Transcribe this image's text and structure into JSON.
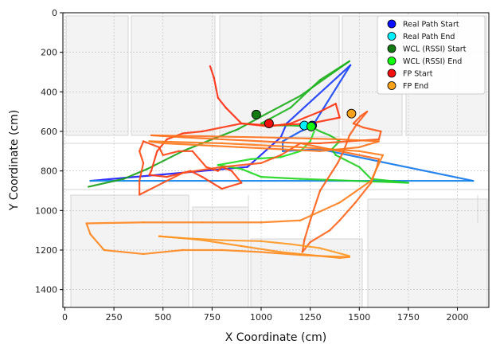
{
  "chart_data": {
    "type": "line",
    "xlabel": "X Coordinate (cm)",
    "ylabel": "Y Coordinate (cm)",
    "xlim": [
      -10,
      2160
    ],
    "ylim": [
      1490,
      0
    ],
    "y_inverted": true,
    "xticks": [
      0,
      250,
      500,
      750,
      1000,
      1250,
      1500,
      1750,
      2000
    ],
    "yticks": [
      0,
      200,
      400,
      600,
      800,
      1000,
      1200,
      1400
    ],
    "grid": true,
    "background": "floor plan",
    "legend_position": "top-right",
    "series": [
      {
        "name": "Real Path",
        "kind": "line",
        "colors": [
          "#1a1aff",
          "#0f8ce6"
        ],
        "points": [
          [
            130,
            850
          ],
          [
            930,
            780
          ],
          [
            1100,
            630
          ],
          [
            1130,
            560
          ],
          [
            1455,
            265
          ],
          [
            1260,
            575
          ],
          [
            1200,
            600
          ],
          [
            1110,
            650
          ],
          [
            1110,
            700
          ],
          [
            1300,
            690
          ],
          [
            2080,
            850
          ],
          [
            300,
            850
          ],
          [
            130,
            850
          ]
        ]
      },
      {
        "name": "WCL (RSSI)",
        "kind": "line",
        "colors": [
          "#1a9e1a",
          "#22e622"
        ],
        "points": [
          [
            120,
            880
          ],
          [
            300,
            840
          ],
          [
            420,
            790
          ],
          [
            600,
            700
          ],
          [
            750,
            640
          ],
          [
            880,
            590
          ],
          [
            1000,
            525
          ],
          [
            1200,
            420
          ],
          [
            1450,
            245
          ],
          [
            1300,
            340
          ],
          [
            1150,
            480
          ],
          [
            1000,
            560
          ],
          [
            1050,
            570
          ],
          [
            1150,
            570
          ],
          [
            1250,
            575
          ],
          [
            1300,
            600
          ],
          [
            1350,
            620
          ],
          [
            1400,
            650
          ],
          [
            1360,
            690
          ],
          [
            1380,
            720
          ],
          [
            1500,
            780
          ],
          [
            1560,
            840
          ],
          [
            1750,
            860
          ],
          [
            1200,
            840
          ],
          [
            1000,
            830
          ],
          [
            900,
            790
          ],
          [
            780,
            770
          ],
          [
            950,
            740
          ],
          [
            1100,
            730
          ],
          [
            1200,
            700
          ],
          [
            1250,
            650
          ],
          [
            1270,
            600
          ]
        ]
      },
      {
        "name": "FP",
        "kind": "line",
        "colors": [
          "#ff2a10",
          "#ff9a22"
        ],
        "points": [
          [
            740,
            270
          ],
          [
            760,
            330
          ],
          [
            780,
            430
          ],
          [
            820,
            480
          ],
          [
            900,
            560
          ],
          [
            1050,
            570
          ],
          [
            1250,
            560
          ],
          [
            1400,
            530
          ],
          [
            1380,
            460
          ],
          [
            1300,
            500
          ],
          [
            1150,
            560
          ],
          [
            1040,
            575
          ],
          [
            900,
            560
          ],
          [
            700,
            600
          ],
          [
            600,
            610
          ],
          [
            520,
            640
          ],
          [
            470,
            700
          ],
          [
            440,
            800
          ],
          [
            430,
            820
          ],
          [
            520,
            830
          ],
          [
            640,
            800
          ],
          [
            700,
            830
          ],
          [
            800,
            890
          ],
          [
            900,
            860
          ],
          [
            850,
            800
          ],
          [
            800,
            780
          ],
          [
            780,
            800
          ],
          [
            720,
            780
          ],
          [
            650,
            700
          ],
          [
            580,
            700
          ],
          [
            500,
            720
          ],
          [
            480,
            680
          ],
          [
            400,
            650
          ],
          [
            380,
            700
          ],
          [
            400,
            760
          ],
          [
            380,
            850
          ],
          [
            380,
            920
          ],
          [
            500,
            860
          ],
          [
            600,
            810
          ],
          [
            800,
            780
          ],
          [
            1000,
            760
          ],
          [
            1100,
            720
          ],
          [
            1200,
            660
          ],
          [
            1300,
            660
          ],
          [
            1450,
            650
          ],
          [
            1600,
            640
          ],
          [
            1610,
            600
          ],
          [
            1520,
            580
          ],
          [
            1470,
            560
          ],
          [
            1510,
            520
          ],
          [
            1540,
            500
          ],
          [
            1490,
            560
          ],
          [
            1450,
            620
          ],
          [
            1420,
            700
          ],
          [
            1390,
            760
          ],
          [
            1300,
            900
          ],
          [
            1250,
            1050
          ],
          [
            1220,
            1150
          ],
          [
            1210,
            1210
          ],
          [
            1250,
            1160
          ],
          [
            1350,
            1100
          ],
          [
            1400,
            1050
          ],
          [
            1480,
            960
          ],
          [
            1560,
            860
          ],
          [
            1590,
            780
          ],
          [
            1600,
            740
          ],
          [
            1400,
            700
          ],
          [
            1200,
            660
          ],
          [
            1000,
            650
          ],
          [
            800,
            640
          ],
          [
            600,
            630
          ],
          [
            440,
            620
          ],
          [
            1000,
            630
          ],
          [
            1400,
            640
          ],
          [
            1600,
            650
          ],
          [
            1500,
            680
          ],
          [
            1300,
            700
          ],
          [
            1100,
            690
          ],
          [
            900,
            680
          ],
          [
            700,
            670
          ],
          [
            500,
            660
          ],
          [
            430,
            650
          ],
          [
            800,
            660
          ],
          [
            1200,
            680
          ],
          [
            1500,
            700
          ],
          [
            1620,
            720
          ],
          [
            1560,
            850
          ],
          [
            1400,
            960
          ],
          [
            1200,
            1050
          ],
          [
            1000,
            1060
          ],
          [
            700,
            1060
          ],
          [
            400,
            1060
          ],
          [
            110,
            1065
          ],
          [
            130,
            1120
          ],
          [
            200,
            1200
          ],
          [
            400,
            1220
          ],
          [
            600,
            1200
          ],
          [
            800,
            1200
          ],
          [
            1000,
            1210
          ],
          [
            1200,
            1225
          ],
          [
            1300,
            1230
          ],
          [
            1400,
            1240
          ],
          [
            1450,
            1235
          ],
          [
            1300,
            1230
          ],
          [
            1100,
            1210
          ],
          [
            900,
            1180
          ],
          [
            700,
            1150
          ],
          [
            600,
            1140
          ],
          [
            480,
            1130
          ],
          [
            600,
            1140
          ],
          [
            800,
            1150
          ],
          [
            1000,
            1155
          ],
          [
            1150,
            1170
          ],
          [
            1300,
            1190
          ],
          [
            1450,
            1230
          ]
        ]
      }
    ],
    "markers": [
      {
        "name": "Real Path Start",
        "x": 1260,
        "y": 570,
        "color": "#0a10ff"
      },
      {
        "name": "Real Path End",
        "x": 1220,
        "y": 570,
        "color": "#00f0ff"
      },
      {
        "name": "WCL (RSSI) Start",
        "x": 975,
        "y": 515,
        "color": "#127a12"
      },
      {
        "name": "WCL (RSSI) End",
        "x": 1255,
        "y": 575,
        "color": "#10ff10"
      },
      {
        "name": "FP Start",
        "x": 1040,
        "y": 560,
        "color": "#f01010"
      },
      {
        "name": "FP End",
        "x": 1460,
        "y": 510,
        "color": "#f7a21a"
      }
    ],
    "legend": [
      {
        "label": "Real Path Start",
        "color": "#0a10ff"
      },
      {
        "label": "Real Path End",
        "color": "#00f0ff"
      },
      {
        "label": "WCL (RSSI) Start",
        "color": "#127a12"
      },
      {
        "label": "WCL (RSSI) End",
        "color": "#10ff10"
      },
      {
        "label": "FP Start",
        "color": "#f01010"
      },
      {
        "label": "FP End",
        "color": "#f7a21a"
      }
    ]
  }
}
